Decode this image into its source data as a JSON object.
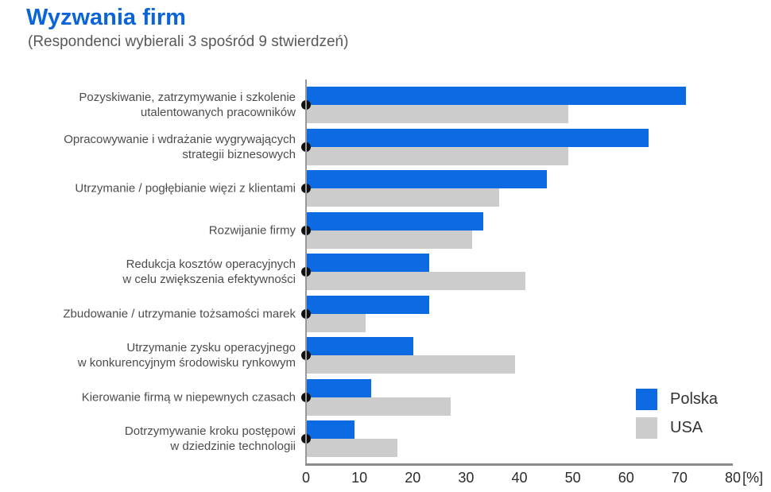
{
  "header": {
    "title": "Wyzwania firm",
    "subtitle": "(Respondenci wybierali 3 spośród 9 stwierdzeń)"
  },
  "colors": {
    "polska_bar": "#0c6be2",
    "usa_bar": "#cccccc",
    "title_blue": "#0b64d8",
    "axis_line": "#8c8c8c",
    "marker_dot": "#111111"
  },
  "legend": {
    "items": [
      {
        "label": "Polska",
        "color": "#0c6be2"
      },
      {
        "label": "USA",
        "color": "#cccccc"
      }
    ]
  },
  "chart_data": {
    "type": "bar",
    "orientation": "horizontal",
    "title": "Wyzwania firm",
    "subtitle": "(Respondenci wybierali 3 spośród 9 stwierdzeń)",
    "categories": [
      "Pozyskiwanie, zatrzymywanie i szkolenie utalentowanych pracowników",
      "Opracowywanie i wdrażanie wygrywających strategii biznesowych",
      "Utrzymanie / pogłębianie więzi z klientami",
      "Rozwijanie firmy",
      "Redukcja kosztów operacyjnych w celu zwiększenia efektywności",
      "Zbudowanie / utrzymanie tożsamości marek",
      "Utrzymanie zysku operacyjnego w konkurencyjnym środowisku rynkowym",
      "Kierowanie firmą w niepewnych czasach",
      "Dotrzymywanie kroku postępowi w dziedzinie technologii"
    ],
    "category_lines": [
      [
        "Pozyskiwanie, zatrzymywanie i szkolenie",
        "utalentowanych pracowników"
      ],
      [
        "Opracowywanie i wdrażanie wygrywających",
        "strategii biznesowych"
      ],
      [
        "Utrzymanie / pogłębianie więzi z klientami"
      ],
      [
        "Rozwijanie firmy"
      ],
      [
        "Redukcja kosztów operacyjnych",
        "w celu zwiększenia efektywności"
      ],
      [
        "Zbudowanie / utrzymanie tożsamości marek"
      ],
      [
        "Utrzymanie zysku operacyjnego",
        "w konkurencyjnym środowisku rynkowym"
      ],
      [
        "Kierowanie firmą w niepewnych czasach"
      ],
      [
        "Dotrzymywanie kroku postępowi",
        "w dziedzinie technologii"
      ]
    ],
    "series": [
      {
        "name": "Polska",
        "values": [
          71,
          64,
          45,
          33,
          23,
          23,
          20,
          12,
          9
        ]
      },
      {
        "name": "USA",
        "values": [
          49,
          49,
          36,
          31,
          41,
          11,
          39,
          27,
          17
        ]
      }
    ],
    "xlim": [
      0,
      80
    ],
    "xticks": [
      0,
      10,
      20,
      30,
      40,
      50,
      60,
      70,
      80
    ],
    "unit_label": "[%]",
    "grid": false,
    "legend_position": "bottom-right"
  }
}
